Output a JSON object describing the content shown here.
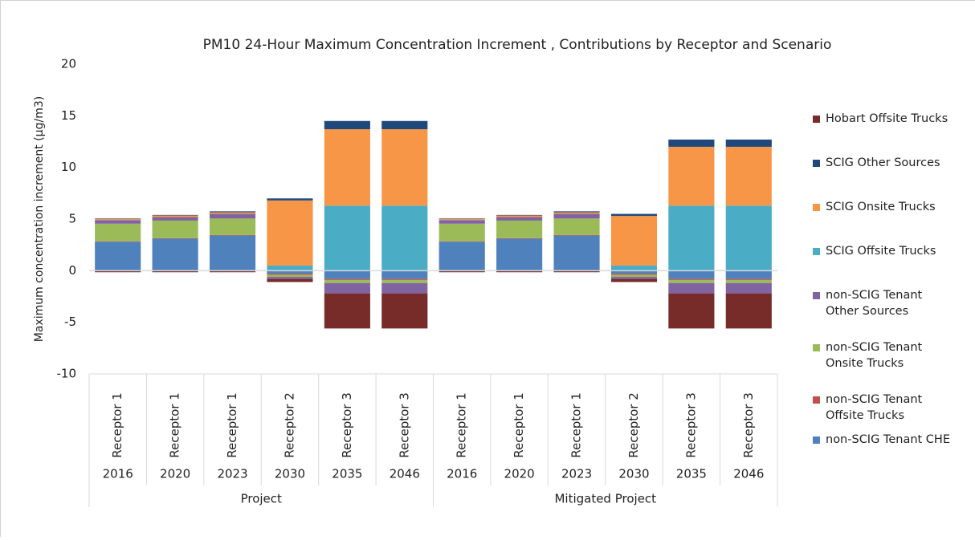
{
  "chart_data": {
    "type": "bar",
    "stacked": true,
    "title": "PM10 24-Hour Maximum Concentration Increment , Contributions by Receptor and Scenario",
    "y_label": "Maximum concentration increment (µg/m3)",
    "groups": [
      {
        "name": "Project",
        "categories": [
          {
            "receptor": "Receptor 1",
            "year": "2016"
          },
          {
            "receptor": "Receptor 1",
            "year": "2020"
          },
          {
            "receptor": "Receptor 1",
            "year": "2023"
          },
          {
            "receptor": "Receptor 2",
            "year": "2030"
          },
          {
            "receptor": "Receptor 3",
            "year": "2035"
          },
          {
            "receptor": "Receptor 3",
            "year": "2046"
          }
        ]
      },
      {
        "name": "Mitigated Project",
        "categories": [
          {
            "receptor": "Receptor 1",
            "year": "2016"
          },
          {
            "receptor": "Receptor 1",
            "year": "2020"
          },
          {
            "receptor": "Receptor 1",
            "year": "2023"
          },
          {
            "receptor": "Receptor 2",
            "year": "2030"
          },
          {
            "receptor": "Receptor 3",
            "year": "2035"
          },
          {
            "receptor": "Receptor 3",
            "year": "2046"
          }
        ]
      }
    ],
    "series": [
      {
        "name": "non-SCIG Tenant CHE",
        "color": "#4f81bd",
        "values": [
          2.8,
          3.1,
          3.4,
          -0.3,
          -0.8,
          -0.8,
          2.8,
          3.1,
          3.4,
          -0.3,
          -0.8,
          -0.8
        ]
      },
      {
        "name": "non-SCIG Tenant Offsite Trucks",
        "color": "#c0504d",
        "values": [
          0.05,
          0.05,
          0.05,
          -0.1,
          -0.1,
          -0.1,
          0.05,
          0.05,
          0.05,
          -0.1,
          -0.1,
          -0.1
        ]
      },
      {
        "name": "non-SCIG Tenant Onsite Trucks",
        "color": "#9bbb59",
        "values": [
          1.7,
          1.7,
          1.6,
          -0.2,
          -0.3,
          -0.3,
          1.7,
          1.7,
          1.6,
          -0.2,
          -0.3,
          -0.3
        ]
      },
      {
        "name": "non-SCIG Tenant Other Sources",
        "color": "#8064a2",
        "values": [
          0.35,
          0.35,
          0.45,
          -0.2,
          -1.0,
          -1.0,
          0.35,
          0.35,
          0.45,
          -0.2,
          -1.0,
          -1.0
        ]
      },
      {
        "name": "SCIG Offsite Trucks",
        "color": "#4bacc6",
        "values": [
          0,
          0,
          0,
          0.5,
          6.3,
          6.3,
          0,
          0,
          0,
          0.5,
          6.3,
          6.3
        ]
      },
      {
        "name": "SCIG Onsite Trucks",
        "color": "#f79646",
        "values": [
          0.1,
          0.15,
          0.15,
          6.3,
          7.4,
          7.4,
          0.1,
          0.15,
          0.15,
          4.8,
          5.7,
          5.7
        ]
      },
      {
        "name": "SCIG Other Sources",
        "color": "#1f497d",
        "values": [
          0.05,
          0.05,
          0.1,
          0.2,
          0.8,
          0.8,
          0.05,
          0.05,
          0.1,
          0.2,
          0.7,
          0.7
        ]
      },
      {
        "name": "Hobart Offsite Trucks",
        "color": "#772c2a",
        "values": [
          -0.15,
          -0.15,
          -0.15,
          -0.3,
          -3.4,
          -3.4,
          -0.15,
          -0.15,
          -0.15,
          -0.3,
          -3.4,
          -3.4
        ]
      }
    ],
    "ylim": [
      -10,
      20
    ],
    "yticks": [
      -10,
      -5,
      0,
      5,
      10,
      15,
      20
    ],
    "grid": false,
    "legend": "right"
  }
}
